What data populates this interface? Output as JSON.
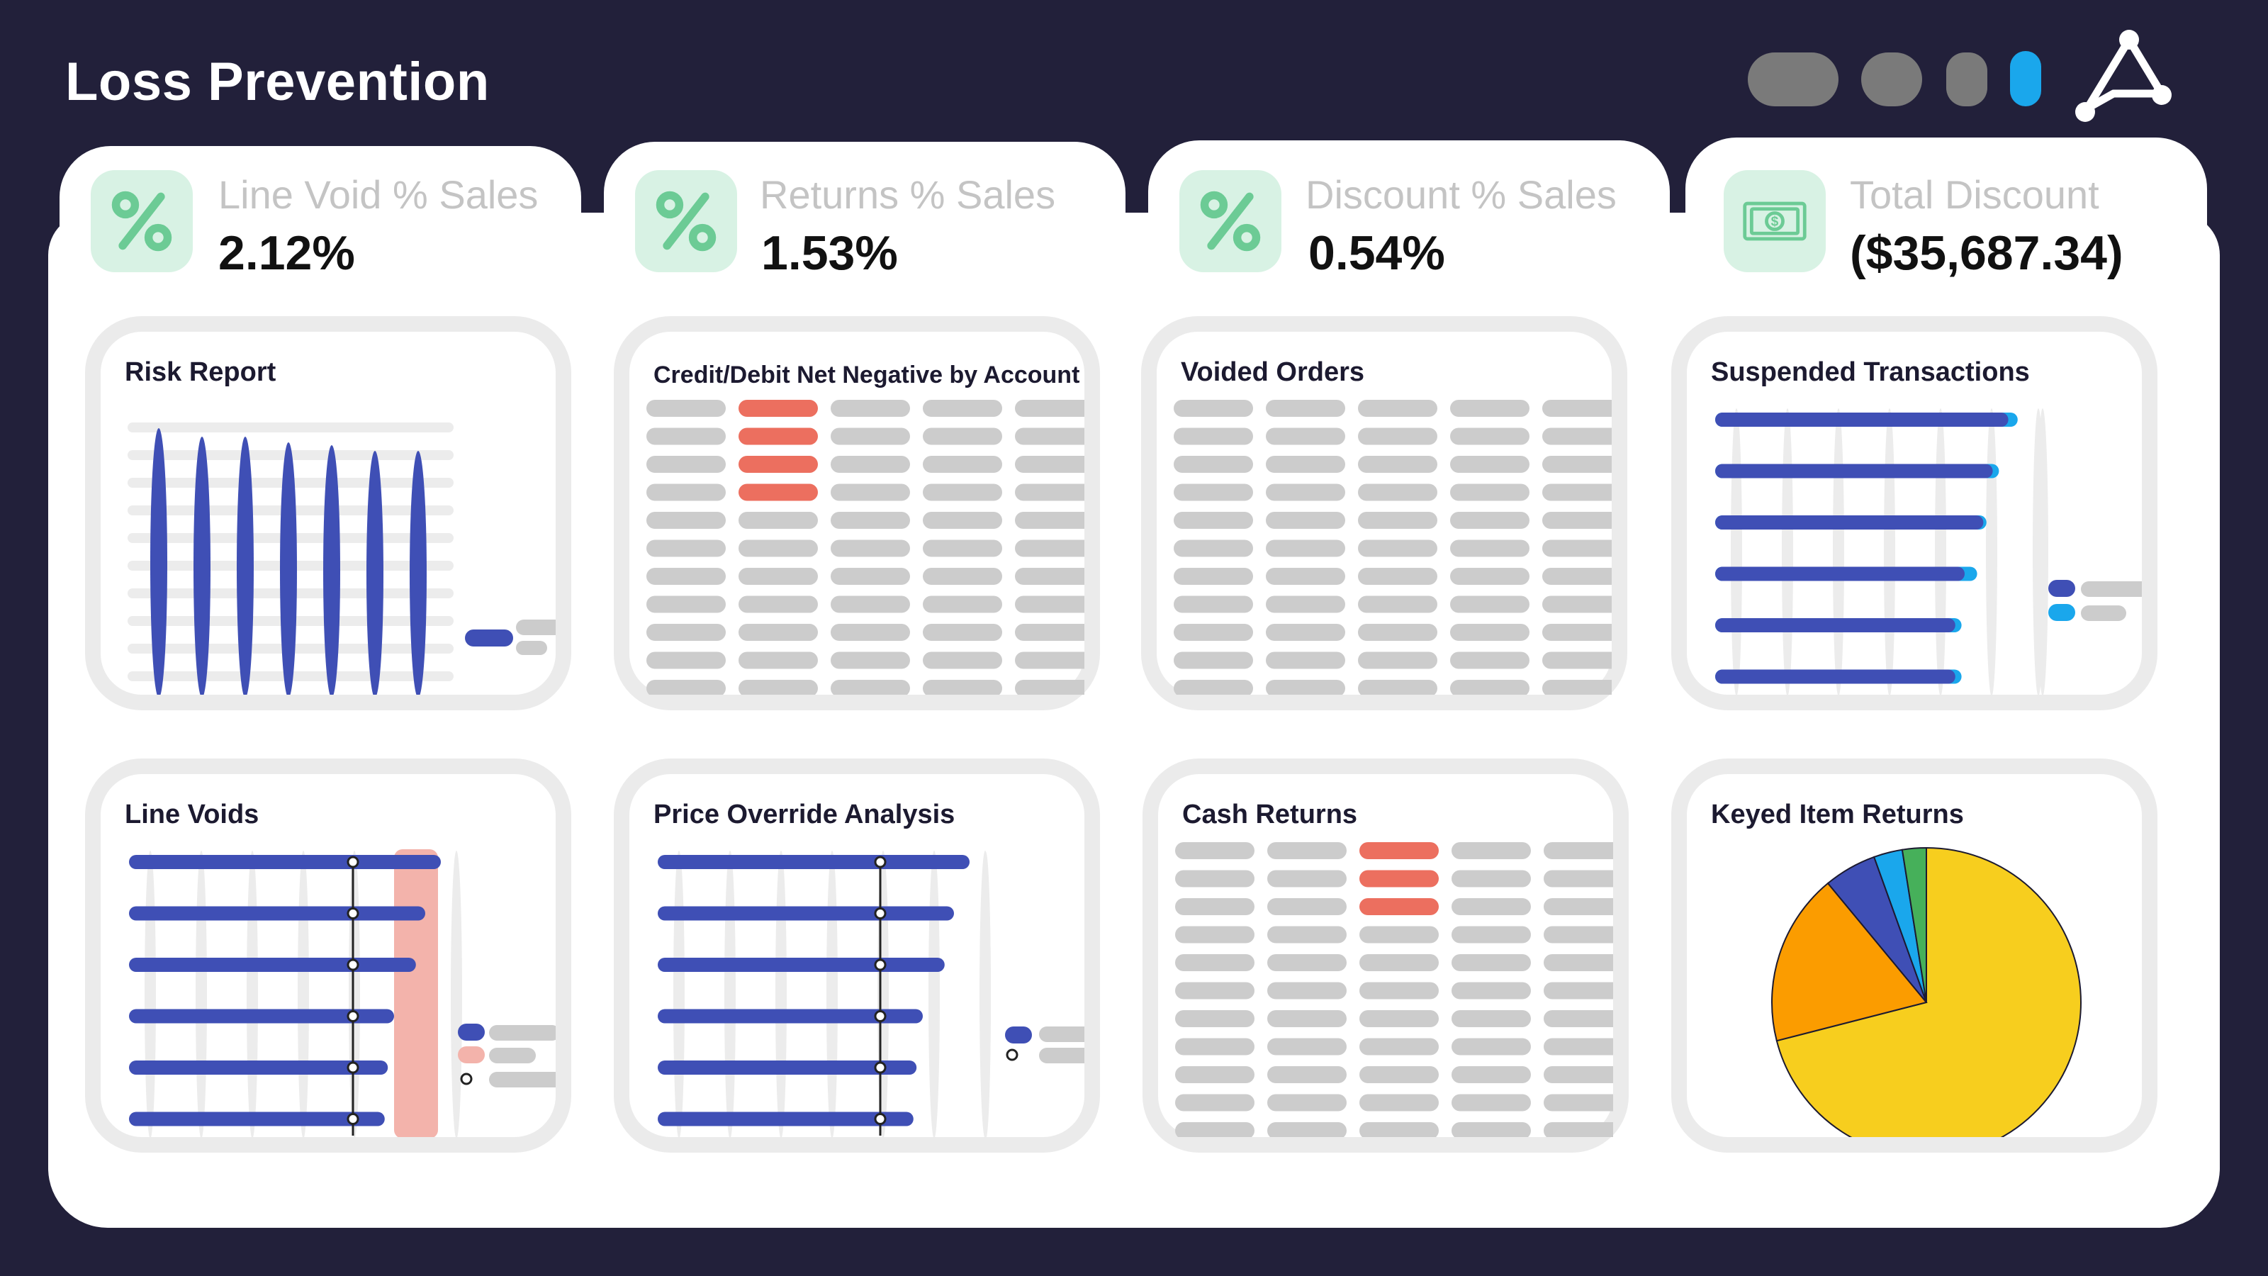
{
  "app": {
    "title": "Loss Prevention"
  },
  "window_controls": [
    "minimize-control",
    "restore-control",
    "collapse-control",
    "active-control"
  ],
  "kpis": [
    {
      "label": "Line Void % Sales",
      "value": "2.12%",
      "icon": "percent-icon"
    },
    {
      "label": "Returns % Sales",
      "value": "1.53%",
      "icon": "percent-icon"
    },
    {
      "label": "Discount % Sales",
      "value": "0.54%",
      "icon": "percent-icon"
    },
    {
      "label": "Total Discount",
      "value": "($35,687.34)",
      "icon": "money-icon"
    }
  ],
  "cards": [
    {
      "title": "Risk Report",
      "type": "bar-chart"
    },
    {
      "title": "Credit/Debit Net Negative by Account",
      "type": "table"
    },
    {
      "title": "Voided Orders",
      "type": "table"
    },
    {
      "title": "Suspended Transactions",
      "type": "bar-chart"
    },
    {
      "title": "Line Voids",
      "type": "bar-chart"
    },
    {
      "title": "Price Override Analysis",
      "type": "bar-chart"
    },
    {
      "title": "Cash Returns",
      "type": "table"
    },
    {
      "title": "Keyed Item Returns",
      "type": "pie-chart"
    }
  ],
  "colors": {
    "background": "#22203a",
    "primary_bar": "#3f4fb5",
    "accent_blue": "#1aa7ec",
    "highlight_red": "#ec6f5f",
    "band_pink": "#f3b3ab",
    "placeholder_gray": "#cccccc",
    "icon_green": "#6ccb95",
    "icon_bg": "#d8f2e4"
  },
  "chart_data": [
    {
      "type": "bar",
      "orientation": "vertical",
      "card": "Risk Report",
      "values": [
        95,
        92,
        92,
        90,
        89,
        87,
        87
      ],
      "ylim": [
        0,
        100
      ]
    },
    {
      "type": "bar",
      "orientation": "horizontal",
      "card": "Suspended Transactions",
      "series": [
        {
          "values": [
            94,
            89,
            86,
            80,
            77,
            77
          ]
        },
        {
          "values": [
            97,
            91,
            87,
            84,
            79,
            79
          ]
        }
      ],
      "xlim": [
        0,
        100
      ]
    },
    {
      "type": "bar",
      "orientation": "horizontal",
      "card": "Line Voids",
      "values": [
        100,
        95,
        92,
        85,
        83,
        82
      ],
      "xlim": [
        0,
        100
      ]
    },
    {
      "type": "bar",
      "orientation": "horizontal",
      "card": "Price Override Analysis",
      "values": [
        100,
        95,
        92,
        85,
        83,
        82
      ],
      "xlim": [
        0,
        100
      ]
    },
    {
      "type": "pie",
      "card": "Keyed Item Returns",
      "values": [
        71,
        18,
        5.5,
        3,
        2.5
      ],
      "colors": [
        "#f7ce1e",
        "#fb9c00",
        "#3f4fb5",
        "#1aa7ec",
        "#46b05a"
      ]
    }
  ]
}
